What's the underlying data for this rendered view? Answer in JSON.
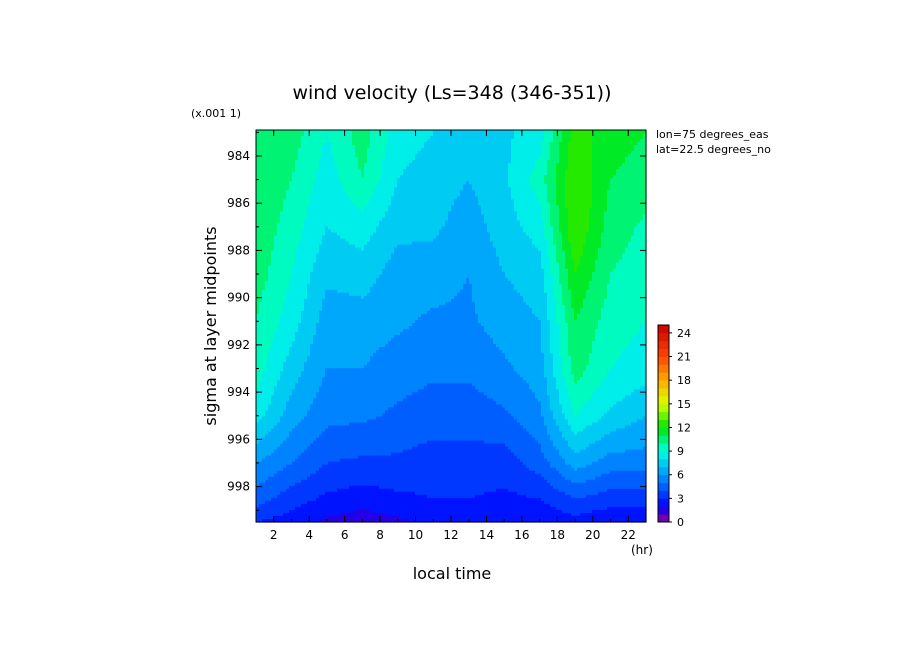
{
  "chart_data": {
    "type": "heatmap",
    "title": "wind velocity (Ls=348 (346-351))",
    "xlabel": "local time",
    "ylabel": "sigma at layer midpoints",
    "x_unit": "(hr)",
    "y_scale_note": "(x.001 1)",
    "annotations": [
      "lon=75 degrees_eas",
      "lat=22.5 degrees_no"
    ],
    "xlim": [
      1,
      23
    ],
    "ylim": [
      999.5,
      982.9
    ],
    "x_ticks": [
      2,
      4,
      6,
      8,
      10,
      12,
      14,
      16,
      18,
      20,
      22
    ],
    "y_ticks": [
      984,
      986,
      988,
      990,
      992,
      994,
      996,
      998
    ],
    "x_tick_labels": [
      "2",
      "4",
      "6",
      "8",
      "10",
      "12",
      "14",
      "16",
      "18",
      "20",
      "22"
    ],
    "y_tick_labels": [
      "984",
      "986",
      "988",
      "990",
      "992",
      "994",
      "996",
      "998"
    ],
    "colorbar": {
      "min": 0,
      "max": 25,
      "step": 1,
      "tick_values": [
        0,
        3,
        6,
        9,
        12,
        15,
        18,
        21,
        24
      ],
      "tick_labels": [
        "0",
        "3",
        "6",
        "9",
        "12",
        "15",
        "18",
        "21",
        "24"
      ]
    },
    "x": [
      1,
      3,
      5,
      7,
      9,
      11,
      13,
      15,
      17,
      19,
      21,
      23
    ],
    "y": [
      983,
      985,
      987,
      989,
      991,
      993,
      995,
      997,
      998.5,
      999.5
    ],
    "z": [
      [
        11.0,
        10.5,
        9.0,
        10.5,
        8.5,
        8.0,
        7.5,
        7.8,
        8.5,
        12.5,
        11.5,
        11.0
      ],
      [
        11.0,
        10.0,
        8.5,
        10.0,
        8.0,
        7.5,
        7.0,
        7.8,
        9.5,
        13.0,
        11.0,
        10.5
      ],
      [
        10.8,
        9.5,
        8.0,
        8.5,
        7.3,
        7.2,
        6.5,
        7.5,
        8.5,
        13.0,
        10.5,
        9.8
      ],
      [
        10.5,
        9.0,
        7.2,
        7.5,
        6.5,
        6.5,
        6.0,
        7.0,
        7.5,
        12.0,
        10.0,
        9.5
      ],
      [
        10.0,
        8.5,
        6.5,
        6.5,
        6.2,
        5.8,
        5.8,
        6.5,
        7.0,
        11.0,
        9.5,
        9.0
      ],
      [
        9.5,
        7.5,
        6.0,
        6.0,
        5.5,
        5.2,
        5.2,
        5.8,
        6.5,
        10.5,
        9.0,
        8.5
      ],
      [
        8.5,
        6.5,
        5.3,
        5.2,
        4.8,
        4.5,
        4.5,
        4.8,
        5.8,
        9.0,
        7.8,
        7.0
      ],
      [
        6.0,
        5.0,
        4.0,
        3.8,
        3.8,
        3.5,
        3.5,
        3.5,
        4.5,
        6.5,
        5.5,
        5.5
      ],
      [
        4.5,
        3.5,
        2.8,
        2.5,
        2.8,
        3.0,
        3.0,
        2.8,
        3.0,
        4.0,
        3.5,
        3.5
      ],
      [
        3.0,
        2.5,
        1.8,
        1.5,
        1.8,
        2.2,
        2.2,
        2.0,
        2.2,
        2.6,
        2.2,
        2.2
      ]
    ]
  }
}
